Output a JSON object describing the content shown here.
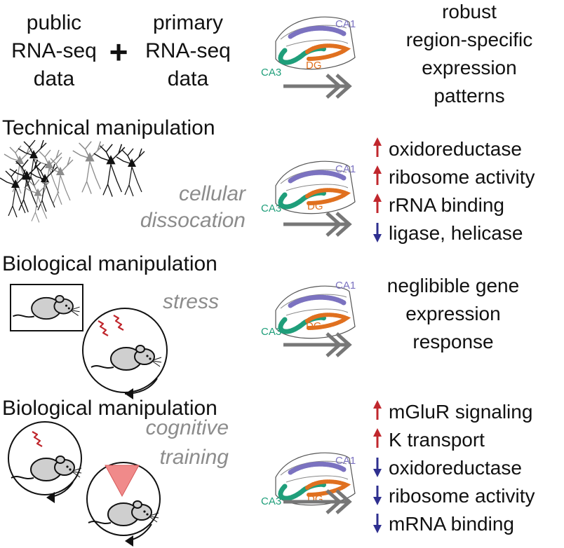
{
  "colors": {
    "ca1": "#7b72c0",
    "ca3": "#1f9e7a",
    "dg": "#e0701f",
    "up": "#c0272d",
    "down": "#2e2f8f",
    "arrow": "#777777",
    "muted": "#8c8c8c",
    "cone": "#f08a8a"
  },
  "regions": {
    "ca1": "CA1",
    "ca3": "CA3",
    "dg": "DG"
  },
  "row1": {
    "public_lines": [
      "public",
      "RNA-seq",
      "data"
    ],
    "plus": "+",
    "primary_lines": [
      "primary",
      "RNA-seq",
      "data"
    ],
    "result_lines": [
      "robust",
      "region-specific",
      "expression",
      "patterns"
    ]
  },
  "row2": {
    "heading": "Technical manipulation",
    "label_lines": [
      "cellular",
      "dissocation"
    ],
    "results": [
      {
        "dir": "up",
        "text": "oxidoreductase"
      },
      {
        "dir": "up",
        "text": "ribosome activity"
      },
      {
        "dir": "up",
        "text": "rRNA binding"
      },
      {
        "dir": "down",
        "text": "ligase, helicase"
      }
    ]
  },
  "row3": {
    "heading": "Biological manipulation",
    "label": "stress",
    "result_lines": [
      "neglibible gene",
      "expression",
      "response"
    ]
  },
  "row4": {
    "heading": "Biological manipulation",
    "label_lines": [
      "cognitive",
      "training"
    ],
    "results": [
      {
        "dir": "up",
        "text": "mGluR signaling"
      },
      {
        "dir": "up",
        "text": "K  transport"
      },
      {
        "dir": "down",
        "text": "oxidoreductase"
      },
      {
        "dir": "down",
        "text": "ribosome activity"
      },
      {
        "dir": "down",
        "text": "mRNA binding"
      }
    ]
  }
}
